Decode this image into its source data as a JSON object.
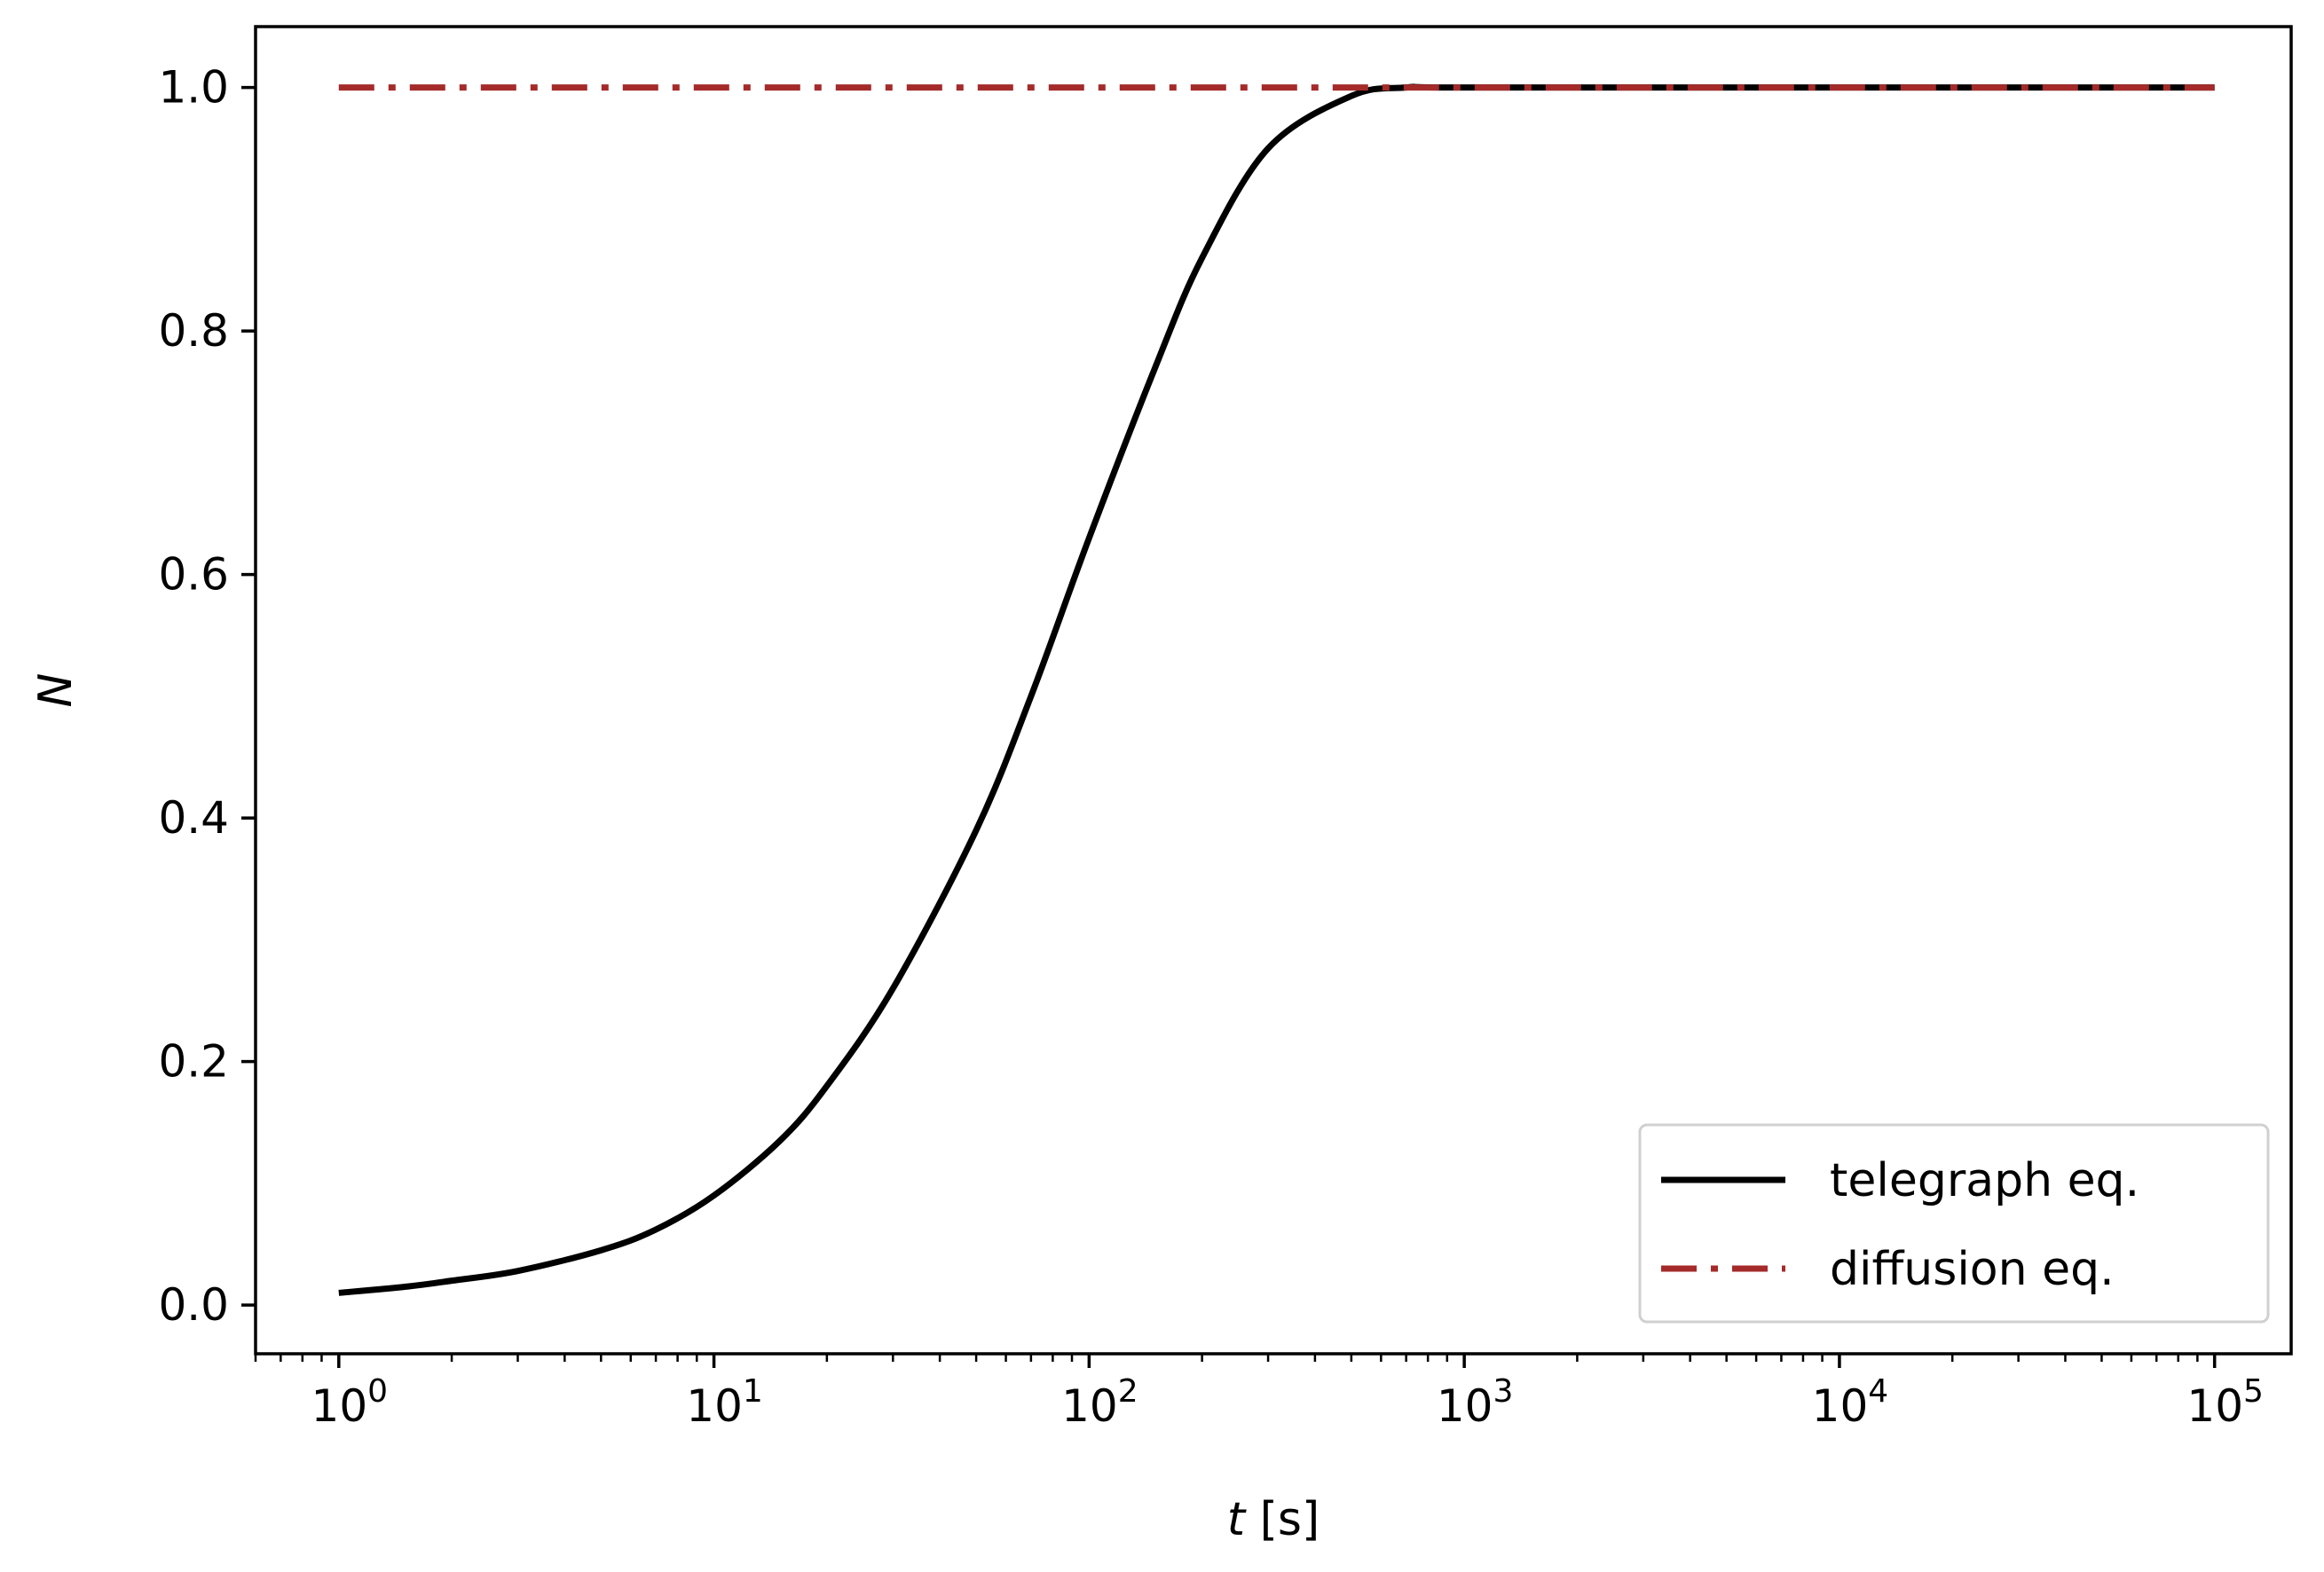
{
  "chart_data": {
    "type": "line",
    "xscale": "log",
    "xlim": [
      0.6,
      160000
    ],
    "ylim": [
      -0.04,
      1.05
    ],
    "xlabel_italic": "t",
    "xlabel_rest": " [s]",
    "ylabel": "N",
    "x_ticks": [
      {
        "value": 1,
        "base": "10",
        "exp": "0"
      },
      {
        "value": 10,
        "base": "10",
        "exp": "1"
      },
      {
        "value": 100,
        "base": "10",
        "exp": "2"
      },
      {
        "value": 1000,
        "base": "10",
        "exp": "3"
      },
      {
        "value": 10000,
        "base": "10",
        "exp": "4"
      },
      {
        "value": 100000,
        "base": "10",
        "exp": "5"
      }
    ],
    "y_ticks": [
      {
        "value": 0.0,
        "label": "0.0"
      },
      {
        "value": 0.2,
        "label": "0.2"
      },
      {
        "value": 0.4,
        "label": "0.4"
      },
      {
        "value": 0.6,
        "label": "0.6"
      },
      {
        "value": 0.8,
        "label": "0.8"
      },
      {
        "value": 1.0,
        "label": "1.0"
      }
    ],
    "series": [
      {
        "name": "telegraph eq.",
        "color": "#000000",
        "style": "solid",
        "x": [
          1,
          1.5,
          2,
          3,
          5,
          7,
          10,
          15,
          20,
          30,
          50,
          70,
          100,
          150,
          200,
          300,
          500,
          700,
          1000,
          10000,
          100000
        ],
        "y": [
          0.01,
          0.015,
          0.02,
          0.028,
          0.045,
          0.062,
          0.09,
          0.135,
          0.18,
          0.26,
          0.39,
          0.5,
          0.63,
          0.77,
          0.86,
          0.95,
          0.993,
          1.0,
          1.0,
          1.0,
          1.0
        ]
      },
      {
        "name": "diffusion eq.",
        "color": "#a52a2a",
        "style": "dashdot",
        "x": [
          1,
          100000
        ],
        "y": [
          1.0,
          1.0
        ]
      }
    ],
    "legend_position": "lower-right",
    "grid": false
  }
}
